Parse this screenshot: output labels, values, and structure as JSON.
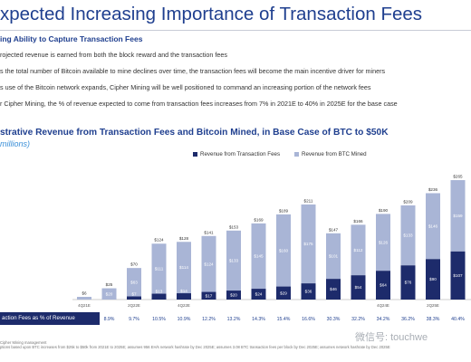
{
  "header": {
    "title": "xpected Increasing Importance of Transaction Fees"
  },
  "section": {
    "heading": "ing Ability to Capture Transaction Fees",
    "bullets": [
      "rojected revenue is earned from both the block reward and the transaction fees",
      "s the total number of Bitcoin available to mine declines over time, the transaction fees will become the main incentive driver for miners",
      "s use of the Bitcoin network expands, Cipher Mining will be well positioned to command an increasing portion of the network fees",
      "r Cipher Mining, the % of revenue expected to come from transaction fees increases from 7% in 2021E to 40% in 2025E for the base case"
    ]
  },
  "colors": {
    "fees": "#1d2b6b",
    "mined": "#a9b5d6",
    "title_blue": "#1f3f8f"
  },
  "chart_data": {
    "type": "bar",
    "title": "strative Revenue from Transaction Fees and Bitcoin Mined, in Base Case of BTC to $50K",
    "unit": "millions)",
    "legend": [
      "Revenue from Transaction Fees",
      "Revenue from BTC Mined"
    ],
    "categories": [
      "4Q21E",
      "",
      "2Q22E",
      "",
      "4Q22E",
      "",
      "",
      "",
      "",
      "",
      "",
      "",
      "4Q24E",
      "",
      "2Q25E",
      "",
      "4Q25E"
    ],
    "series": [
      {
        "name": "Revenue from Transaction Fees",
        "values": [
          null,
          null,
          7,
          13,
          14,
          17,
          20,
          24,
          29,
          36,
          46,
          54,
          64,
          76,
          90,
          107,
          128
        ]
      },
      {
        "name": "Revenue from BTC Mined",
        "values": [
          null,
          20,
          63,
          111,
          114,
          124,
          133,
          145,
          160,
          175,
          101,
          112,
          126,
          133,
          146,
          159,
          181
        ]
      }
    ],
    "totals": [
      6,
      25,
      70,
      124,
      128,
      141,
      153,
      169,
      189,
      211,
      147,
      166,
      190,
      209,
      236,
      265,
      309
    ],
    "total_labels": [
      "$6",
      "$25",
      "$70",
      "$124",
      "$128",
      "$141",
      "$153",
      "$169",
      "$189",
      "$211",
      "$147",
      "$166",
      "$190",
      "$209",
      "$236",
      "$265",
      ""
    ],
    "fee_labels": [
      "",
      "",
      "$7",
      "$13",
      "$14",
      "$17",
      "$20",
      "$24",
      "$29",
      "$36",
      "$46",
      "$54",
      "$64",
      "$76",
      "$90",
      "$107",
      "$128"
    ],
    "mined_labels": [
      "",
      "$20",
      "$63",
      "$111",
      "$114",
      "$124",
      "$133",
      "$145",
      "$160",
      "$175",
      "$101",
      "$112",
      "$126",
      "$133",
      "$146",
      "$159",
      "$181"
    ],
    "pct_row_label": "action Fees as % of Revenue",
    "pct_values": [
      "8.2%",
      "8.9%",
      "9.7%",
      "10.5%",
      "10.9%",
      "12.2%",
      "13.2%",
      "14.3%",
      "15.4%",
      "16.6%",
      "30.3%",
      "32.2%",
      "34.2%",
      "36.2%",
      "38.3%",
      "40.4%",
      "4"
    ],
    "ylim": [
      0,
      320
    ],
    "grid": false,
    "legend_placement": "top-right"
  },
  "footnotes": [
    "Cipher Mining management",
    "ptions based upon BTC increases from $25k to $50k from 2021E to 2025E; assumes 956 EH/s network hashrate by Dec 2025E; assumes 3.08 BTC transaction fees per block by Dec 2025E; assumes network hashrate by Dec 2025E"
  ],
  "watermark": "微信号: touchwe"
}
